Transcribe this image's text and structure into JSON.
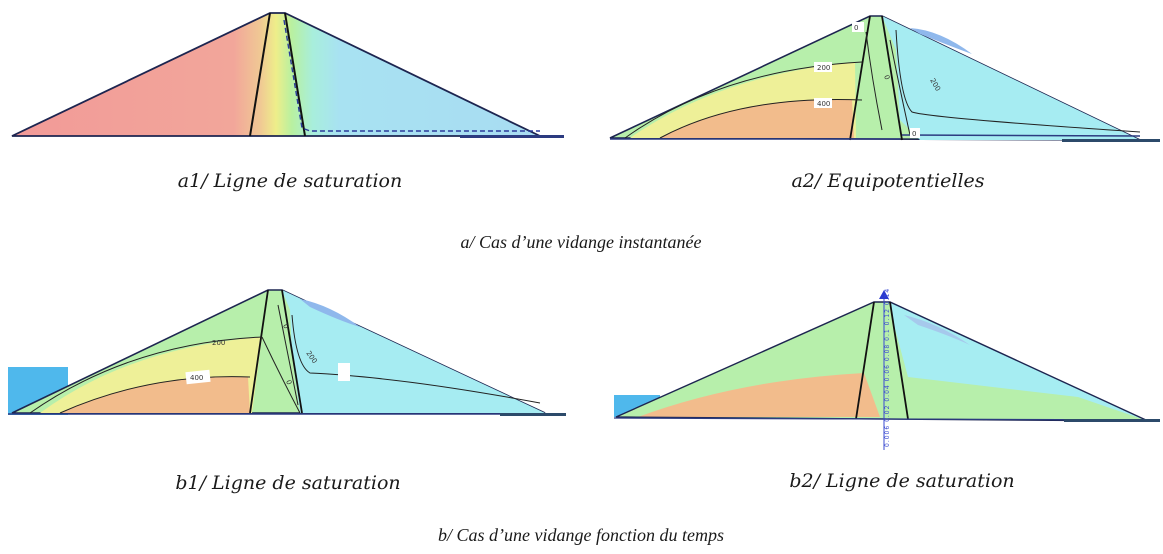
{
  "panels": {
    "a1": {
      "caption": "a1/ Ligne de saturation"
    },
    "a2": {
      "caption": "a2/ Equipotentielles",
      "labels": [
        "0",
        "200",
        "400",
        "0",
        "200",
        "0"
      ]
    },
    "b1": {
      "caption": "b1/ Ligne de saturation",
      "labels": [
        "200",
        "400",
        "0",
        "0",
        "200"
      ]
    },
    "b2": {
      "caption": "b2/ Ligne de saturation",
      "vertical_label": "0.006 0.02 0.04 0.06 0.08 0.1 0.12 0.14"
    }
  },
  "groups": {
    "a": {
      "caption": "a/ Cas d’une vidange instantanée"
    },
    "b": {
      "caption": "b/ Cas d’une vidange fonction du temps"
    }
  },
  "colors": {
    "upstream_shell": "#f3a898",
    "downstream_shell": "#9fdcf0",
    "core_yellow": "#f0f08a",
    "core_green": "#b8ecaa",
    "water": "#4fb8ec",
    "orange_zone": "#f2bc8c",
    "green_zone": "#b6efaa",
    "cyan_zone": "#a6edf2"
  }
}
